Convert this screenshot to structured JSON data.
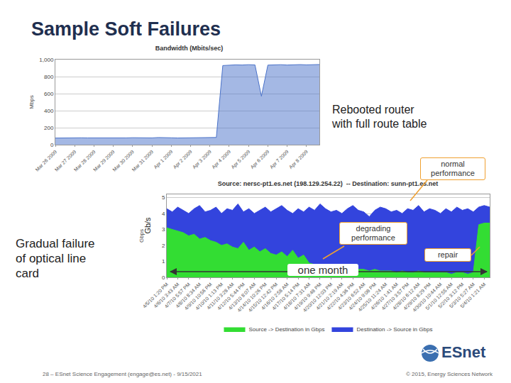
{
  "slide": {
    "title": "Sample Soft Failures",
    "footer": "28 – ESnet Science Engagement (engage@es.net) - 9/15/2021",
    "copyright": "© 2015, Energy Sciences Network",
    "logo": "ESnet",
    "notes": {
      "reboot": [
        "Rebooted router",
        "with full route table"
      ],
      "line_card": [
        "Gradual failure",
        "of optical line",
        "card"
      ],
      "unit": "Gb/s",
      "normal": [
        "normal",
        "performance"
      ],
      "degrading": [
        "degrading",
        "performance"
      ],
      "repair": "repair",
      "span": "one month"
    }
  },
  "chart_data": [
    {
      "type": "area",
      "title": "Bandwidth (Mbits/sec)",
      "y_label": "Mbps",
      "categories": [
        "Mar 26 2009",
        null,
        null,
        "Mar 27 2009",
        null,
        null,
        "Mar 28 2009",
        null,
        null,
        "Mar 29 2009",
        null,
        null,
        "Mar 30 2009",
        null,
        null,
        "Mar 31 2009",
        null,
        null,
        "Apr 1 2009",
        null,
        null,
        "Apr 2 2009",
        null,
        null,
        "Apr 3 2009",
        null,
        null,
        "Apr 4 2009",
        null,
        null,
        "Apr 5 2009",
        null,
        null,
        "Apr 6 2009",
        null,
        null,
        "Apr 7 2009",
        null,
        null,
        "Apr 8 2009",
        null,
        null
      ],
      "values": [
        78,
        80,
        79,
        82,
        81,
        80,
        79,
        83,
        80,
        81,
        78,
        80,
        82,
        81,
        79,
        80,
        84,
        80,
        81,
        79,
        80,
        82,
        81,
        80,
        83,
        85,
        930,
        935,
        938,
        936,
        940,
        937,
        570,
        935,
        938,
        940,
        936,
        939,
        941,
        938,
        940,
        942
      ],
      "color": "#4a72c9",
      "ylim": [
        0,
        1000
      ],
      "yticks": [
        0,
        200,
        400,
        600,
        800,
        {
          "value": 1000,
          "label": "1,000"
        }
      ],
      "grid": true
    },
    {
      "type": "area",
      "title": "Source: nersc-pt1.es.net (198.129.254.22)  -- Destination: sunn-pt1.es.net",
      "y_label": "Gbps",
      "categories": [
        "4/5/10 1:20 PM",
        null,
        "4/6/10 3:43 AM",
        null,
        "4/7/10 5:57 PM",
        null,
        "4/8/10 8:34 AM",
        null,
        "4/9/10 10:56 PM",
        null,
        "4/10/10 1:13 PM",
        null,
        "4/11/10 3:28 AM",
        null,
        "4/12/10 5:44 PM",
        null,
        "4/13/10 8:07 AM",
        null,
        "4/14/10 10:26 PM",
        null,
        "4/15/10 12:42 PM",
        null,
        "4/16/10 2:58 AM",
        null,
        "4/17/10 5:14 PM",
        null,
        "4/18/10 7:31 AM",
        null,
        "4/19/10 9:48 PM",
        null,
        "4/20/10 12:03 PM",
        null,
        "4/21/10 2:19 AM",
        null,
        "4/22/10 4:36 PM",
        null,
        "4/23/10 6:52 AM",
        null,
        "4/24/10 9:08 PM",
        null,
        "4/25/10 11:24 AM",
        null,
        "4/26/10 1:41 AM",
        null,
        "4/27/10 3:57 PM",
        null,
        "4/28/10 6:12 AM",
        null,
        "4/29/10 8:29 PM",
        null,
        "4/30/10 10:44 AM",
        null,
        "5/1/10 12:55 AM",
        null,
        "5/2/10 3:12 PM",
        null,
        "5/3/10 5:27 AM",
        null,
        "5/4/10 1:21 AM",
        null
      ],
      "series": [
        {
          "name": "Source -> Destination in Gbps",
          "color": "#33dd33",
          "values": [
            3.1,
            3.0,
            2.9,
            2.8,
            2.6,
            2.7,
            2.4,
            2.5,
            2.3,
            2.2,
            2.0,
            2.1,
            1.9,
            1.8,
            2.2,
            1.7,
            1.9,
            1.6,
            1.8,
            1.5,
            1.4,
            1.6,
            1.3,
            1.7,
            1.2,
            1.4,
            0.9,
            0.8,
            0.7,
            0.8,
            0.6,
            0.7,
            0.6,
            0.5,
            0.6,
            0.5,
            0.5,
            0.4,
            0.5,
            0.4,
            0.4,
            0.4,
            0.3,
            0.4,
            0.3,
            0.3,
            0.4,
            0.3,
            0.3,
            0.3,
            0.3,
            0.3,
            0.2,
            0.3,
            0.3,
            0.2,
            0.3,
            3.3,
            3.4,
            3.4
          ]
        },
        {
          "name": "Destination -> Source in Gbps",
          "color": "#3344dd",
          "values": [
            4.3,
            4.1,
            4.4,
            4.2,
            4.0,
            4.3,
            4.5,
            4.1,
            4.2,
            4.4,
            4.0,
            4.3,
            4.2,
            4.6,
            4.1,
            4.3,
            4.0,
            4.2,
            4.4,
            4.1,
            4.3,
            4.5,
            4.2,
            4.0,
            4.3,
            4.1,
            4.4,
            4.2,
            4.6,
            4.3,
            4.1,
            4.2,
            4.0,
            4.3,
            4.5,
            4.2,
            4.1,
            3.8,
            4.2,
            4.4,
            4.3,
            4.1,
            4.2,
            4.0,
            4.3,
            4.2,
            4.5,
            4.1,
            4.3,
            4.2,
            4.0,
            4.3,
            4.1,
            4.4,
            4.2,
            4.3,
            4.1,
            4.4,
            4.5,
            4.4
          ]
        }
      ],
      "ylim": [
        0,
        5.2
      ],
      "yticks": [
        0,
        1,
        2,
        3,
        4,
        5
      ],
      "grid": true,
      "legend": "bottom"
    }
  ]
}
